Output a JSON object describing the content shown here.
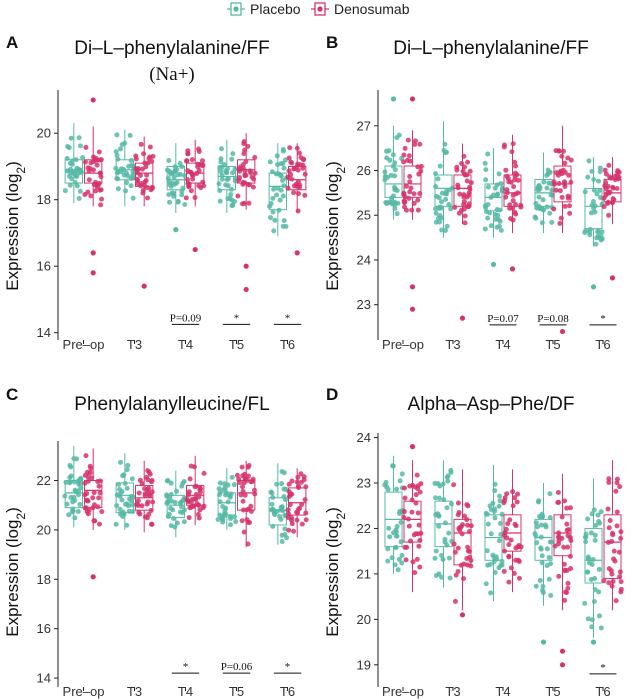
{
  "legend": {
    "items": [
      {
        "name": "Placebo",
        "color": "#56b9a6"
      },
      {
        "name": "Denosumab",
        "color": "#d6336c"
      }
    ]
  },
  "ylabel": {
    "main": "Expression (log",
    "sub": "2",
    "close": ")"
  },
  "chart_data": [
    {
      "type": "boxplot",
      "panel": "A",
      "title": "Di–L–phenylalanine/FF",
      "subtitle": "(Na+)",
      "categories": [
        "Pre–op",
        "T3",
        "T4",
        "T5",
        "T6"
      ],
      "ylim": [
        13.9,
        21.3
      ],
      "yticks": [
        14,
        16,
        18,
        20
      ],
      "series": [
        {
          "name": "Placebo",
          "color": "#56b9a6",
          "boxes": [
            {
              "min": 17.9,
              "q1": 18.5,
              "median": 18.9,
              "q3": 19.2,
              "max": 20.3
            },
            {
              "min": 17.8,
              "q1": 18.6,
              "median": 18.9,
              "q3": 19.2,
              "max": 20.1
            },
            {
              "min": 17.6,
              "q1": 18.3,
              "median": 18.6,
              "q3": 19.0,
              "max": 19.7
            },
            {
              "min": 17.6,
              "q1": 18.3,
              "median": 18.7,
              "q3": 19.0,
              "max": 19.8
            },
            {
              "min": 16.9,
              "q1": 17.7,
              "median": 18.4,
              "q3": 18.8,
              "max": 19.7
            }
          ]
        },
        {
          "name": "Denosumab",
          "color": "#d6336c",
          "boxes": [
            {
              "min": 17.8,
              "q1": 18.5,
              "median": 18.8,
              "q3": 19.2,
              "max": 20.2
            },
            {
              "min": 17.8,
              "q1": 18.4,
              "median": 18.8,
              "q3": 19.1,
              "max": 19.9
            },
            {
              "min": 17.8,
              "q1": 18.5,
              "median": 18.8,
              "q3": 19.1,
              "max": 19.8
            },
            {
              "min": 17.7,
              "q1": 18.5,
              "median": 18.9,
              "q3": 19.2,
              "max": 20.0
            },
            {
              "min": 17.6,
              "q1": 18.3,
              "median": 18.6,
              "q3": 19.0,
              "max": 19.7
            }
          ]
        }
      ],
      "outliers": [
        {
          "series": 1,
          "cat": 0,
          "y": 15.8
        },
        {
          "series": 1,
          "cat": 0,
          "y": 16.4
        },
        {
          "series": 1,
          "cat": 0,
          "y": 21.0
        },
        {
          "series": 1,
          "cat": 1,
          "y": 15.4
        },
        {
          "series": 0,
          "cat": 2,
          "y": 17.1
        },
        {
          "series": 1,
          "cat": 2,
          "y": 16.5
        },
        {
          "series": 1,
          "cat": 3,
          "y": 15.3
        },
        {
          "series": 1,
          "cat": 3,
          "y": 16.0
        },
        {
          "series": 1,
          "cat": 4,
          "y": 16.4
        }
      ],
      "annotations": [
        {
          "cat": 2,
          "label": "P=0.09",
          "y": 14.25
        },
        {
          "cat": 3,
          "label": "*",
          "y": 14.25
        },
        {
          "cat": 4,
          "label": "*",
          "y": 14.25
        }
      ]
    },
    {
      "type": "boxplot",
      "panel": "B",
      "title": "Di–L–phenylalanine/FF",
      "subtitle": "",
      "categories": [
        "Pre–op",
        "T3",
        "T4",
        "T5",
        "T6"
      ],
      "ylim": [
        22.3,
        27.8
      ],
      "yticks": [
        23,
        24,
        25,
        26,
        27
      ],
      "series": [
        {
          "name": "Placebo",
          "color": "#56b9a6",
          "boxes": [
            {
              "min": 24.9,
              "q1": 25.4,
              "median": 25.7,
              "q3": 26.1,
              "max": 27.0
            },
            {
              "min": 24.5,
              "q1": 25.2,
              "median": 25.6,
              "q3": 25.9,
              "max": 27.1
            },
            {
              "min": 24.5,
              "q1": 25.1,
              "median": 25.4,
              "q3": 25.7,
              "max": 26.5
            },
            {
              "min": 24.6,
              "q1": 25.2,
              "median": 25.5,
              "q3": 25.8,
              "max": 26.4
            },
            {
              "min": 24.3,
              "q1": 24.7,
              "median": 25.2,
              "q3": 25.6,
              "max": 26.3
            }
          ]
        },
        {
          "name": "Denosumab",
          "color": "#d6336c",
          "boxes": [
            {
              "min": 24.9,
              "q1": 25.4,
              "median": 25.7,
              "q3": 26.1,
              "max": 26.9
            },
            {
              "min": 24.8,
              "q1": 25.2,
              "median": 25.6,
              "q3": 25.9,
              "max": 26.6
            },
            {
              "min": 24.6,
              "q1": 25.2,
              "median": 25.5,
              "q3": 25.9,
              "max": 26.8
            },
            {
              "min": 24.6,
              "q1": 25.3,
              "median": 25.7,
              "q3": 26.1,
              "max": 27.0
            },
            {
              "min": 24.8,
              "q1": 25.3,
              "median": 25.5,
              "q3": 25.8,
              "max": 26.3
            }
          ]
        }
      ],
      "outliers": [
        {
          "series": 1,
          "cat": 0,
          "y": 22.9
        },
        {
          "series": 1,
          "cat": 0,
          "y": 23.4
        },
        {
          "series": 1,
          "cat": 0,
          "y": 27.6
        },
        {
          "series": 0,
          "cat": 0,
          "y": 27.6
        },
        {
          "series": 1,
          "cat": 1,
          "y": 22.7
        },
        {
          "series": 0,
          "cat": 2,
          "y": 23.9
        },
        {
          "series": 1,
          "cat": 2,
          "y": 23.8
        },
        {
          "series": 1,
          "cat": 3,
          "y": 22.4
        },
        {
          "series": 0,
          "cat": 4,
          "y": 23.4
        },
        {
          "series": 1,
          "cat": 4,
          "y": 23.6
        }
      ],
      "annotations": [
        {
          "cat": 2,
          "label": "P=0.07",
          "y": 22.55
        },
        {
          "cat": 3,
          "label": "P=0.08",
          "y": 22.55
        },
        {
          "cat": 4,
          "label": "*",
          "y": 22.55
        }
      ]
    },
    {
      "type": "boxplot",
      "panel": "C",
      "title": "Phenylalanylleucine/FL",
      "subtitle": "",
      "categories": [
        "Pre–op",
        "T3",
        "T4",
        "T5",
        "T6"
      ],
      "ylim": [
        13.8,
        23.6
      ],
      "yticks": [
        14,
        16,
        18,
        20,
        22
      ],
      "series": [
        {
          "name": "Placebo",
          "color": "#56b9a6",
          "boxes": [
            {
              "min": 20.1,
              "q1": 20.9,
              "median": 21.5,
              "q3": 22.0,
              "max": 23.4
            },
            {
              "min": 20.0,
              "q1": 20.7,
              "median": 21.4,
              "q3": 21.9,
              "max": 23.1
            },
            {
              "min": 19.7,
              "q1": 20.5,
              "median": 21.0,
              "q3": 21.4,
              "max": 22.4
            },
            {
              "min": 20.0,
              "q1": 20.6,
              "median": 21.1,
              "q3": 21.5,
              "max": 22.5
            },
            {
              "min": 19.4,
              "q1": 20.2,
              "median": 20.8,
              "q3": 21.3,
              "max": 22.7
            }
          ]
        },
        {
          "name": "Denosumab",
          "color": "#d6336c",
          "boxes": [
            {
              "min": 20.0,
              "q1": 20.9,
              "median": 21.6,
              "q3": 22.0,
              "max": 23.3
            },
            {
              "min": 19.9,
              "q1": 20.8,
              "median": 21.3,
              "q3": 21.8,
              "max": 22.8
            },
            {
              "min": 20.2,
              "q1": 21.0,
              "median": 21.4,
              "q3": 21.8,
              "max": 23.0
            },
            {
              "min": 19.3,
              "q1": 20.8,
              "median": 21.5,
              "q3": 22.0,
              "max": 22.8
            },
            {
              "min": 19.7,
              "q1": 20.6,
              "median": 21.1,
              "q3": 21.7,
              "max": 22.5
            }
          ]
        }
      ],
      "outliers": [
        {
          "series": 1,
          "cat": 0,
          "y": 18.1
        }
      ],
      "annotations": [
        {
          "cat": 2,
          "label": "*",
          "y": 14.2
        },
        {
          "cat": 3,
          "label": "P=0.06",
          "y": 14.2
        },
        {
          "cat": 4,
          "label": "*",
          "y": 14.2
        }
      ]
    },
    {
      "type": "boxplot",
      "panel": "D",
      "title": "Alpha–Asp–Phe/DF",
      "subtitle": "",
      "categories": [
        "Pre–op",
        "T3",
        "T4",
        "T5",
        "T6"
      ],
      "ylim": [
        18.6,
        24.1
      ],
      "yticks": [
        19,
        20,
        21,
        22,
        23,
        24
      ],
      "series": [
        {
          "name": "Placebo",
          "color": "#56b9a6",
          "boxes": [
            {
              "min": 21.0,
              "q1": 21.6,
              "median": 22.2,
              "q3": 22.8,
              "max": 23.6
            },
            {
              "min": 20.7,
              "q1": 21.6,
              "median": 22.1,
              "q3": 22.6,
              "max": 23.5
            },
            {
              "min": 20.4,
              "q1": 21.3,
              "median": 21.8,
              "q3": 22.3,
              "max": 23.4
            },
            {
              "min": 20.3,
              "q1": 21.3,
              "median": 21.8,
              "q3": 22.2,
              "max": 23.0
            },
            {
              "min": 19.6,
              "q1": 20.8,
              "median": 21.3,
              "q3": 22.0,
              "max": 23.1
            }
          ]
        },
        {
          "name": "Denosumab",
          "color": "#d6336c",
          "boxes": [
            {
              "min": 20.6,
              "q1": 21.7,
              "median": 22.2,
              "q3": 22.6,
              "max": 23.5
            },
            {
              "min": 20.2,
              "q1": 21.2,
              "median": 21.9,
              "q3": 22.2,
              "max": 23.3
            },
            {
              "min": 20.6,
              "q1": 21.5,
              "median": 21.9,
              "q3": 22.3,
              "max": 23.3
            },
            {
              "min": 20.2,
              "q1": 21.4,
              "median": 21.9,
              "q3": 22.3,
              "max": 23.2
            },
            {
              "min": 20.2,
              "q1": 20.9,
              "median": 21.7,
              "q3": 22.3,
              "max": 23.5
            }
          ]
        }
      ],
      "outliers": [
        {
          "series": 1,
          "cat": 0,
          "y": 23.8
        },
        {
          "series": 1,
          "cat": 1,
          "y": 20.1
        },
        {
          "series": 0,
          "cat": 3,
          "y": 19.5
        },
        {
          "series": 1,
          "cat": 3,
          "y": 19.0
        },
        {
          "series": 1,
          "cat": 3,
          "y": 19.3
        },
        {
          "series": 0,
          "cat": 4,
          "y": 19.5
        }
      ],
      "annotations": [
        {
          "cat": 4,
          "label": "*",
          "y": 18.8
        }
      ]
    }
  ]
}
